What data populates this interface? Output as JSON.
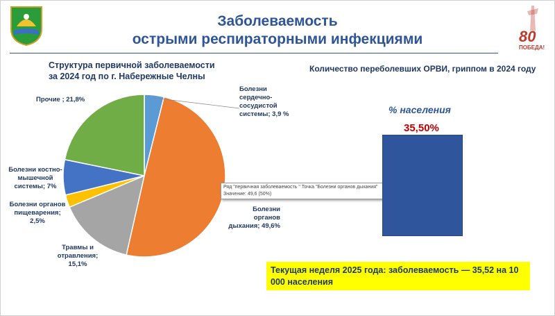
{
  "header": {
    "title_line1": "Заболеваемость",
    "title_line2": "острыми респираторными инфекциями"
  },
  "left": {
    "subtitle_line1": "Структура первичной заболеваемости",
    "subtitle_line2": "за 2024 год по г. Набережные Челны"
  },
  "right": {
    "title": "Количество переболевших ОРВИ, гриппом в 2024 году",
    "bar_label": "% населения",
    "bar_value_label": "35,50%"
  },
  "tooltip": {
    "line1": "Ряд \"первичная заболеваемость \" Точка \"Болезни органов дыхания\"",
    "line2": "Значение: 49,6 (50%)"
  },
  "banner": {
    "text": "Текущая неделя 2025 года: заболеваемость — 35,52 на 10 000 населения"
  },
  "pie_labels": {
    "heart": [
      "Болезни",
      "сердечно-",
      "сосудистой",
      "системы; 3,9 %"
    ],
    "resp": [
      "Болезни органов",
      "дыхания; 49,6%"
    ],
    "trauma": [
      "Травмы и",
      "отравления;",
      "15,1%"
    ],
    "digest": [
      "Болезни органов",
      "пищеварения;",
      "2,5%"
    ],
    "musculo": [
      "Болезни костно-",
      "мышечной",
      "системы; 7%"
    ],
    "other": [
      "Прочие ; 21,8%"
    ]
  },
  "badge": {
    "number": "80",
    "text": "ПОБЕДА!"
  },
  "chart_data": [
    {
      "type": "pie",
      "title": "Структура первичной заболеваемости за 2024 год по г. Набережные Челны",
      "series": [
        {
          "name": "первичная заболеваемость",
          "slices": [
            {
              "label": "Болезни сердечно-сосудистой системы",
              "value": 3.9,
              "color": "#5b9bd5"
            },
            {
              "label": "Болезни органов дыхания",
              "value": 49.6,
              "color": "#ed7d31"
            },
            {
              "label": "Травмы и отравления",
              "value": 15.1,
              "color": "#a5a5a5"
            },
            {
              "label": "Болезни органов пищеварения",
              "value": 2.5,
              "color": "#ffc000"
            },
            {
              "label": "Болезни костно-мышечной системы",
              "value": 7.0,
              "color": "#4472c4"
            },
            {
              "label": "Прочие",
              "value": 21.8,
              "color": "#70ad47"
            }
          ]
        }
      ],
      "legend": "none"
    },
    {
      "type": "bar",
      "title": "Количество переболевших ОРВИ, гриппом в 2024 году",
      "categories": [
        "% населения"
      ],
      "values": [
        35.5
      ],
      "color": "#2f569d"
    }
  ]
}
